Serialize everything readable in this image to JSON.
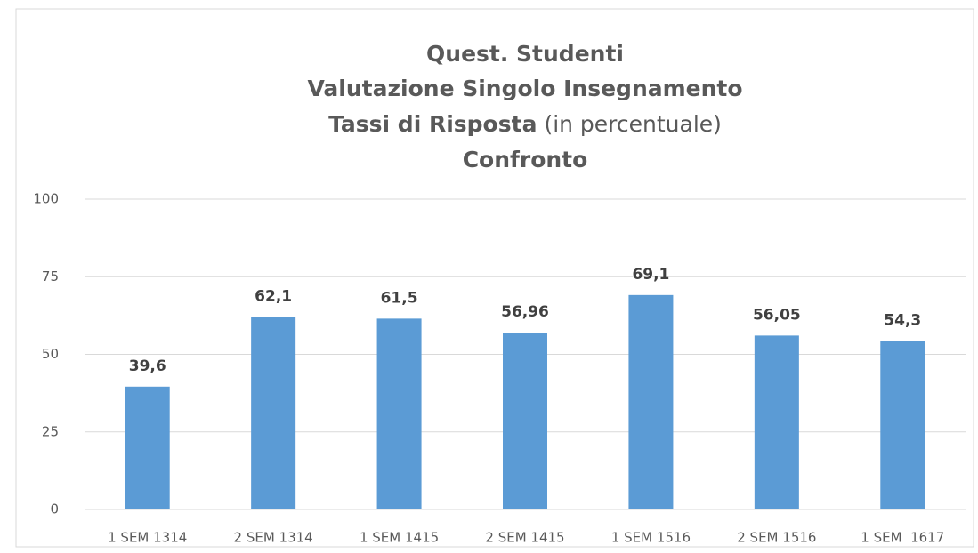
{
  "chart_data": {
    "type": "bar",
    "title": [
      "Quest. Studenti",
      "Valutazione Singolo Insegnamento",
      "Tassi di Risposta",
      "Confronto"
    ],
    "title_note": "(in percentuale)",
    "categories": [
      "1 SEM 1314",
      "2 SEM 1314",
      "1 SEM 1415",
      "2 SEM 1415",
      "1 SEM 1516",
      "2 SEM 1516",
      "1 SEM  1617"
    ],
    "values": [
      39.6,
      62.1,
      61.5,
      56.96,
      69.1,
      56.05,
      54.3
    ],
    "value_labels": [
      "39,6",
      "62,1",
      "61,5",
      "56,96",
      "69,1",
      "56,05",
      "54,3"
    ],
    "color": "#5b9bd5",
    "ylim": [
      0,
      100
    ],
    "yticks": [
      0,
      25,
      50,
      75,
      100
    ],
    "grid": true
  }
}
